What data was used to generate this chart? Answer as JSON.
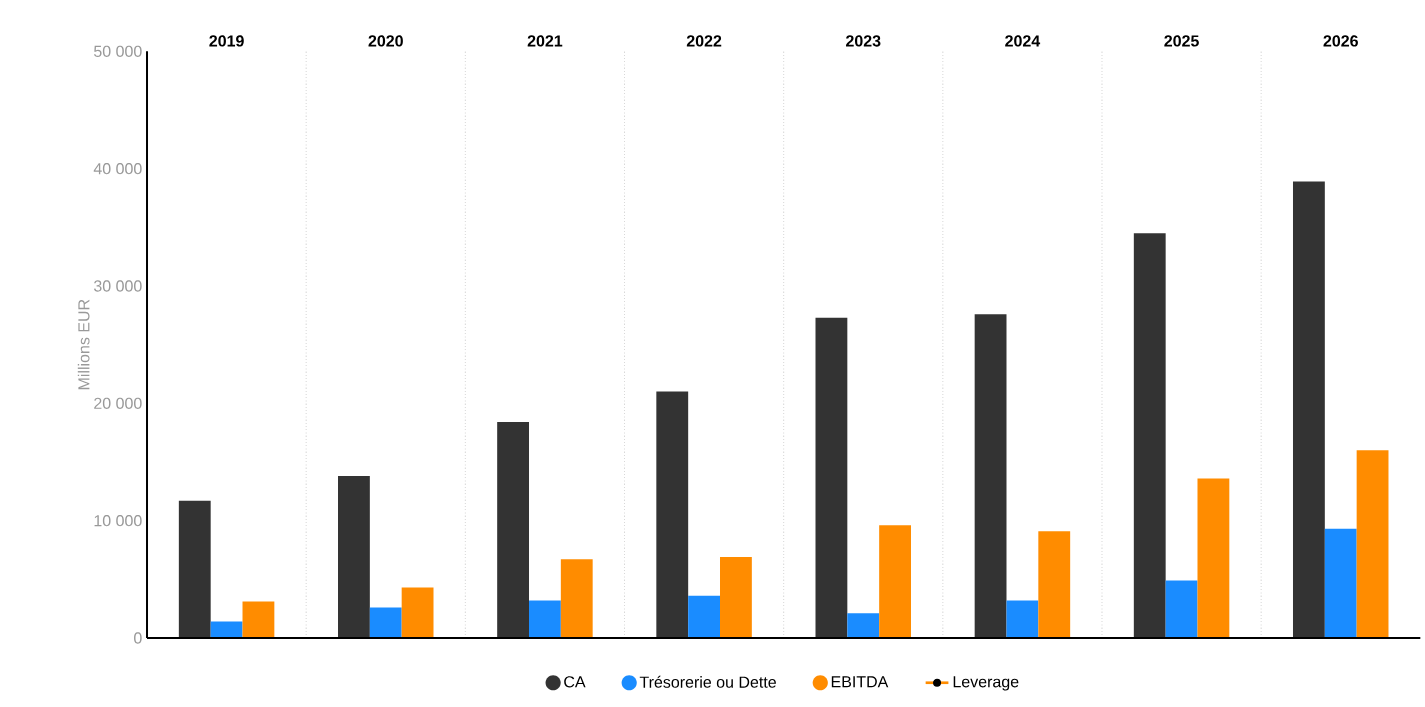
{
  "chart_data": {
    "type": "bar",
    "ylabel": "Millions EUR",
    "categories": [
      "2019",
      "2020",
      "2021",
      "2022",
      "2023",
      "2024",
      "2025",
      "2026"
    ],
    "series": [
      {
        "name": "CA",
        "color": "#333333",
        "values": [
          11700,
          13800,
          18400,
          21000,
          27300,
          27600,
          34500,
          38900
        ]
      },
      {
        "name": "Trésorerie ou Dette",
        "color": "#1a8cff",
        "values": [
          1400,
          2600,
          3200,
          3600,
          2100,
          3200,
          4900,
          9300
        ]
      },
      {
        "name": "EBITDA",
        "color": "#ff8c00",
        "values": [
          3100,
          4300,
          6700,
          6900,
          9600,
          9100,
          13600,
          16000
        ]
      },
      {
        "name": "Leverage",
        "type": "line",
        "color": "#ff8c00",
        "marker": "circle",
        "values": [
          null,
          null,
          null,
          null,
          null,
          null,
          null,
          null
        ]
      }
    ],
    "ylim": [
      0,
      50000
    ],
    "yticks": [
      {
        "value": 0,
        "label": "0"
      },
      {
        "value": 10000,
        "label": "10 000"
      },
      {
        "value": 20000,
        "label": "20 000"
      },
      {
        "value": 30000,
        "label": "30 000"
      },
      {
        "value": 40000,
        "label": "40 000"
      },
      {
        "value": 50000,
        "label": "50 000"
      }
    ],
    "grid": "x",
    "legend": "bottom"
  }
}
